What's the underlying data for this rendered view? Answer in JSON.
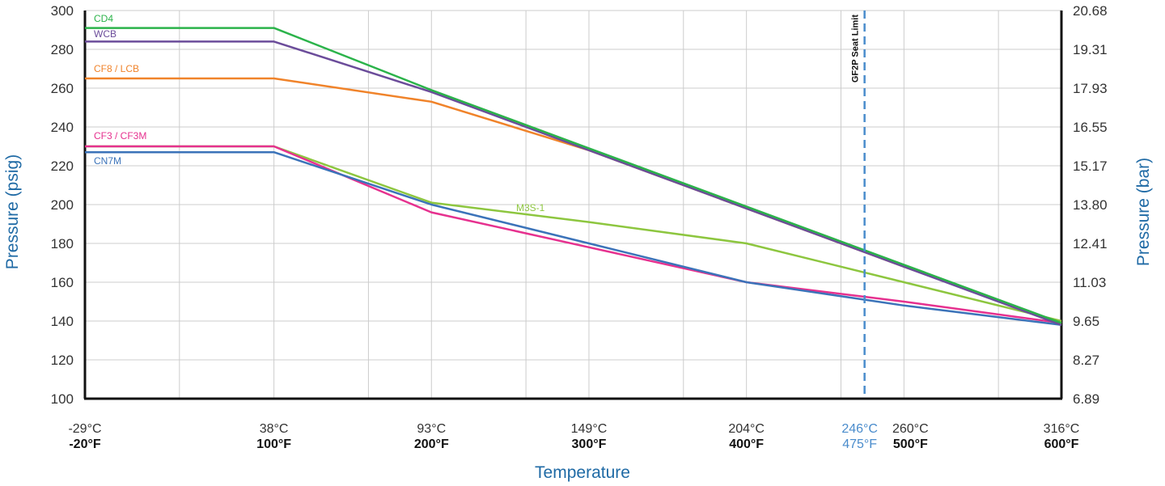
{
  "chart_data": {
    "type": "line",
    "xlabel": "Temperature",
    "ylabel_left": "Pressure (psig)",
    "ylabel_right": "Pressure (bar)",
    "x_range_f": [
      -20,
      600
    ],
    "ylim": [
      100,
      300
    ],
    "grid": true,
    "y_ticks_left": [
      "100",
      "120",
      "140",
      "160",
      "180",
      "200",
      "220",
      "240",
      "260",
      "280",
      "300"
    ],
    "y_ticks_right": [
      "6.89",
      "8.27",
      "9.65",
      "11.03",
      "12.41",
      "13.80",
      "15.17",
      "16.55",
      "17.93",
      "19.31",
      "20.68"
    ],
    "x_gridlines_f": [
      -20,
      40,
      100,
      160,
      200,
      260,
      300,
      360,
      400,
      460,
      500,
      560,
      600
    ],
    "x_ticks": [
      {
        "f": -20,
        "c_label": "-29°C",
        "f_label": "-20°F"
      },
      {
        "f": 100,
        "c_label": "38°C",
        "f_label": "100°F"
      },
      {
        "f": 200,
        "c_label": "93°C",
        "f_label": "200°F"
      },
      {
        "f": 300,
        "c_label": "149°C",
        "f_label": "300°F"
      },
      {
        "f": 400,
        "c_label": "204°C",
        "f_label": "400°F"
      },
      {
        "f": 500,
        "c_label": "260°C",
        "f_label": "500°F"
      },
      {
        "f": 600,
        "c_label": "316°C",
        "f_label": "600°F"
      }
    ],
    "seat_limit": {
      "f": 475,
      "c_label": "246°C",
      "f_label": "475°F",
      "label": "GF2P Seat Limit",
      "color": "#4a8ccc"
    },
    "series": [
      {
        "name": "CD4",
        "color": "#2bb34a",
        "x": [
          -20,
          100,
          200,
          300,
          400,
          500,
          600
        ],
        "y": [
          291,
          291,
          259,
          229,
          199,
          169,
          139
        ]
      },
      {
        "name": "WCB",
        "color": "#6b4c9a",
        "x": [
          -20,
          100,
          200,
          300,
          400,
          500,
          600
        ],
        "y": [
          284,
          284,
          258,
          228,
          198,
          168,
          138
        ]
      },
      {
        "name": "CF8 / LCB",
        "color": "#f0832a",
        "x": [
          -20,
          100,
          200,
          300,
          400,
          500,
          600
        ],
        "y": [
          265,
          265,
          253,
          228,
          198,
          168,
          139
        ]
      },
      {
        "name": "CF3 / CF3M",
        "color": "#e6318f",
        "x": [
          -20,
          100,
          200,
          300,
          400,
          500,
          600
        ],
        "y": [
          230,
          230,
          196,
          178,
          160,
          150,
          139
        ]
      },
      {
        "name": "CN7M",
        "color": "#3b73b9",
        "x": [
          -20,
          100,
          200,
          300,
          400,
          500,
          600
        ],
        "y": [
          227,
          227,
          200,
          180,
          160,
          148,
          138
        ]
      },
      {
        "name": "M3S-1",
        "color": "#8dc63f",
        "x": [
          -20,
          100,
          200,
          300,
          400,
          500,
          600
        ],
        "y": [
          230,
          230,
          201,
          191,
          180,
          160,
          140
        ]
      }
    ]
  },
  "colors": {
    "axis_title": "#1f6aa5",
    "grid": "#cccccc",
    "axis": "#111111"
  }
}
